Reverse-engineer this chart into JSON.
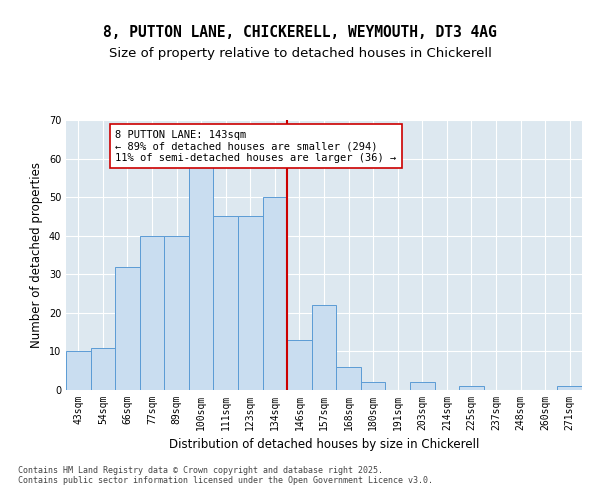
{
  "title_line1": "8, PUTTON LANE, CHICKERELL, WEYMOUTH, DT3 4AG",
  "title_line2": "Size of property relative to detached houses in Chickerell",
  "xlabel": "Distribution of detached houses by size in Chickerell",
  "ylabel": "Number of detached properties",
  "bar_labels": [
    "43sqm",
    "54sqm",
    "66sqm",
    "77sqm",
    "89sqm",
    "100sqm",
    "111sqm",
    "123sqm",
    "134sqm",
    "146sqm",
    "157sqm",
    "168sqm",
    "180sqm",
    "191sqm",
    "203sqm",
    "214sqm",
    "225sqm",
    "237sqm",
    "248sqm",
    "260sqm",
    "271sqm"
  ],
  "bar_values": [
    10,
    11,
    32,
    40,
    40,
    58,
    45,
    45,
    50,
    13,
    22,
    6,
    2,
    0,
    2,
    0,
    1,
    0,
    0,
    0,
    1
  ],
  "bar_color": "#c9ddf0",
  "bar_edge_color": "#5b9bd5",
  "vline_color": "#cc0000",
  "annotation_text": "8 PUTTON LANE: 143sqm\n← 89% of detached houses are smaller (294)\n11% of semi-detached houses are larger (36) →",
  "annotation_box_color": "#ffffff",
  "annotation_box_edge": "#cc0000",
  "ylim": [
    0,
    70
  ],
  "yticks": [
    0,
    10,
    20,
    30,
    40,
    50,
    60,
    70
  ],
  "plot_bg_color": "#dde8f0",
  "fig_bg_color": "#ffffff",
  "footer_text": "Contains HM Land Registry data © Crown copyright and database right 2025.\nContains public sector information licensed under the Open Government Licence v3.0.",
  "title_fontsize": 10.5,
  "subtitle_fontsize": 9.5,
  "axis_label_fontsize": 8.5,
  "tick_fontsize": 7,
  "annotation_fontsize": 7.5,
  "footer_fontsize": 6
}
